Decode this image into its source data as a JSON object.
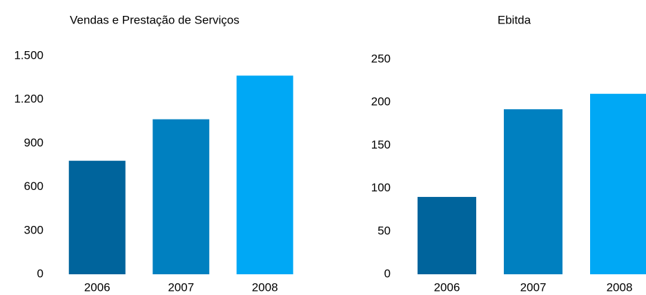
{
  "chart_data": [
    {
      "type": "bar",
      "title": "Vendas e Prestação de Serviços",
      "categories": [
        "2006",
        "2007",
        "2008"
      ],
      "values": [
        780,
        1065,
        1365
      ],
      "colors": [
        "#00649c",
        "#0080c0",
        "#00a8f5"
      ],
      "ylim": [
        0,
        1500
      ],
      "yticks": [
        0,
        300,
        600,
        900,
        {
          "value": 1200,
          "label": "1.200"
        },
        {
          "value": 1500,
          "label": "1.500"
        }
      ],
      "grid": false
    },
    {
      "type": "bar",
      "title": "Ebitda",
      "categories": [
        "2006",
        "2007",
        "2008"
      ],
      "values": [
        90,
        192,
        210
      ],
      "colors": [
        "#00649c",
        "#0080c0",
        "#00a8f5"
      ],
      "ylim": [
        0,
        250
      ],
      "yticks": [
        0,
        50,
        100,
        150,
        200,
        250
      ],
      "grid": false
    }
  ]
}
